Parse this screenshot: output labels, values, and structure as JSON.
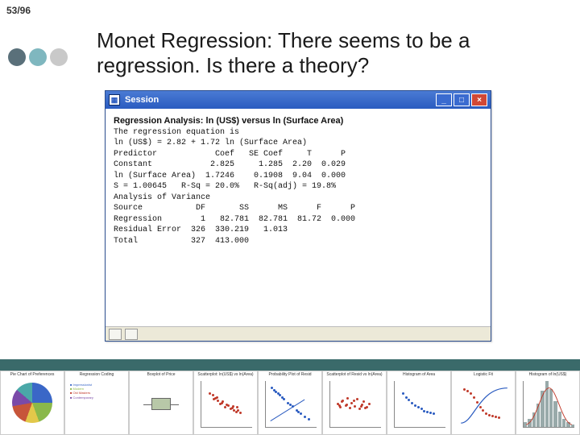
{
  "page_number": "53/96",
  "bullets": {
    "colors": [
      "#5a707a",
      "#7fb7bf",
      "#c9c9c9"
    ]
  },
  "title": "Monet Regression: There seems to be a regression. Is there a theory?",
  "window": {
    "title": "Session",
    "buttons": {
      "min": "_",
      "max": "□",
      "close": "×"
    },
    "lines": [
      "Regression Analysis: ln (US$) versus ln (Surface Area)",
      "",
      "The regression equation is",
      "ln (US$) = 2.82 + 1.72 ln (Surface Area)",
      "",
      "",
      "Predictor            Coef   SE Coef     T      P",
      "Constant            2.825     1.285  2.20  0.029",
      "ln (Surface Area)  1.7246    0.1908  9.04  0.000",
      "",
      "",
      "S = 1.00645   R-Sq = 20.0%   R-Sq(adj) = 19.8%",
      "",
      "",
      "Analysis of Variance",
      "",
      "Source           DF       SS      MS      F      P",
      "Regression        1   82.781  82.781  81.72  0.000",
      "Residual Error  326  330.219   1.013",
      "Total           327  413.000"
    ]
  },
  "divider_color": "#3a6a6a",
  "thumbs": [
    {
      "type": "pie",
      "label": "Pie Chart of Preferences"
    },
    {
      "type": "legend_box",
      "label": "Regression Coding",
      "legend": [
        "Impressionist",
        "Modern",
        "Old Masters",
        "Contemporary"
      ],
      "legend_colors": [
        "#3a67c7",
        "#8ab84a",
        "#c03a2a",
        "#7a4aa8"
      ]
    },
    {
      "type": "boxplot",
      "label": "Boxplot of Price"
    },
    {
      "type": "scatter_red",
      "label": "Scatterplot: ln(US$) vs ln(Area)",
      "points": [
        [
          15,
          70
        ],
        [
          22,
          58
        ],
        [
          28,
          62
        ],
        [
          35,
          48
        ],
        [
          40,
          52
        ],
        [
          44,
          40
        ],
        [
          50,
          44
        ],
        [
          55,
          36
        ],
        [
          60,
          42
        ],
        [
          66,
          30
        ],
        [
          70,
          34
        ],
        [
          74,
          28
        ],
        [
          30,
          55
        ],
        [
          48,
          46
        ],
        [
          58,
          38
        ],
        [
          20,
          66
        ],
        [
          38,
          50
        ],
        [
          62,
          34
        ],
        [
          68,
          40
        ],
        [
          25,
          60
        ]
      ]
    },
    {
      "type": "probplot",
      "label": "Probability Plot of Resid",
      "points": [
        [
          10,
          82
        ],
        [
          18,
          74
        ],
        [
          26,
          66
        ],
        [
          34,
          58
        ],
        [
          42,
          50
        ],
        [
          50,
          42
        ],
        [
          58,
          34
        ],
        [
          66,
          26
        ],
        [
          74,
          20
        ],
        [
          82,
          14
        ],
        [
          14,
          78
        ],
        [
          22,
          70
        ],
        [
          30,
          62
        ],
        [
          46,
          46
        ],
        [
          62,
          30
        ]
      ]
    },
    {
      "type": "scatter_red",
      "label": "Scatterplot of Resid vs ln(Area)",
      "points": [
        [
          12,
          48
        ],
        [
          18,
          40
        ],
        [
          22,
          55
        ],
        [
          28,
          44
        ],
        [
          32,
          60
        ],
        [
          36,
          38
        ],
        [
          40,
          50
        ],
        [
          46,
          42
        ],
        [
          50,
          58
        ],
        [
          55,
          36
        ],
        [
          60,
          46
        ],
        [
          64,
          52
        ],
        [
          70,
          40
        ],
        [
          74,
          48
        ],
        [
          20,
          52
        ],
        [
          30,
          46
        ],
        [
          44,
          54
        ],
        [
          58,
          42
        ],
        [
          66,
          38
        ],
        [
          16,
          44
        ]
      ]
    },
    {
      "type": "scatter_blue",
      "label": "Histogram of Area",
      "points": [
        [
          14,
          70
        ],
        [
          20,
          62
        ],
        [
          26,
          56
        ],
        [
          32,
          50
        ],
        [
          38,
          44
        ],
        [
          44,
          40
        ],
        [
          50,
          36
        ],
        [
          56,
          32
        ],
        [
          62,
          30
        ],
        [
          68,
          28
        ],
        [
          74,
          26
        ]
      ]
    },
    {
      "type": "logistic",
      "label": "Logistic Fit",
      "points": [
        [
          10,
          80
        ],
        [
          16,
          76
        ],
        [
          22,
          70
        ],
        [
          28,
          62
        ],
        [
          34,
          52
        ],
        [
          40,
          42
        ],
        [
          46,
          34
        ],
        [
          52,
          28
        ],
        [
          58,
          24
        ],
        [
          64,
          22
        ],
        [
          70,
          20
        ],
        [
          76,
          19
        ]
      ]
    },
    {
      "type": "histogram",
      "label": "Histogram of ln(US$)",
      "bars": [
        8,
        14,
        24,
        40,
        62,
        78,
        64,
        44,
        26,
        14,
        8,
        4
      ]
    }
  ]
}
